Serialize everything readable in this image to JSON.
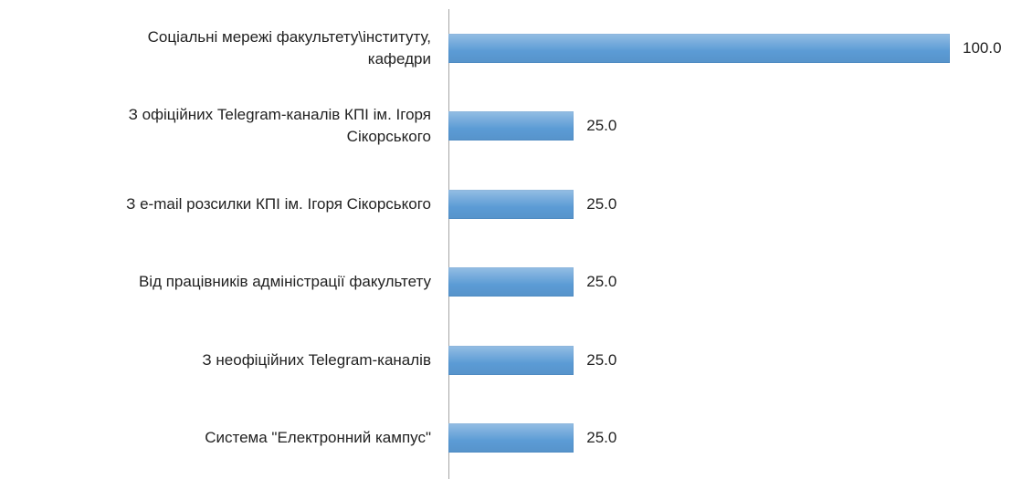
{
  "chart_data": {
    "type": "bar",
    "orientation": "horizontal",
    "categories": [
      "Соціальні мережі факультету\\інституту,\nкафедри",
      "З офіційних Telegram-каналів КПІ ім. Ігоря\nСікорського",
      "З e-mail розсилки КПІ ім. Ігоря Сікорського",
      "Від працівників адміністрації факультету",
      "З неофіційних Telegram-каналів",
      "Система \"Електронний кампус\""
    ],
    "values": [
      100,
      25,
      25,
      25,
      25,
      25
    ],
    "value_labels": [
      "100.0",
      "25.0",
      "25.0",
      "25.0",
      "25.0",
      "25.0"
    ],
    "color": "#5b9bd5",
    "xlim": [
      0,
      100
    ]
  }
}
